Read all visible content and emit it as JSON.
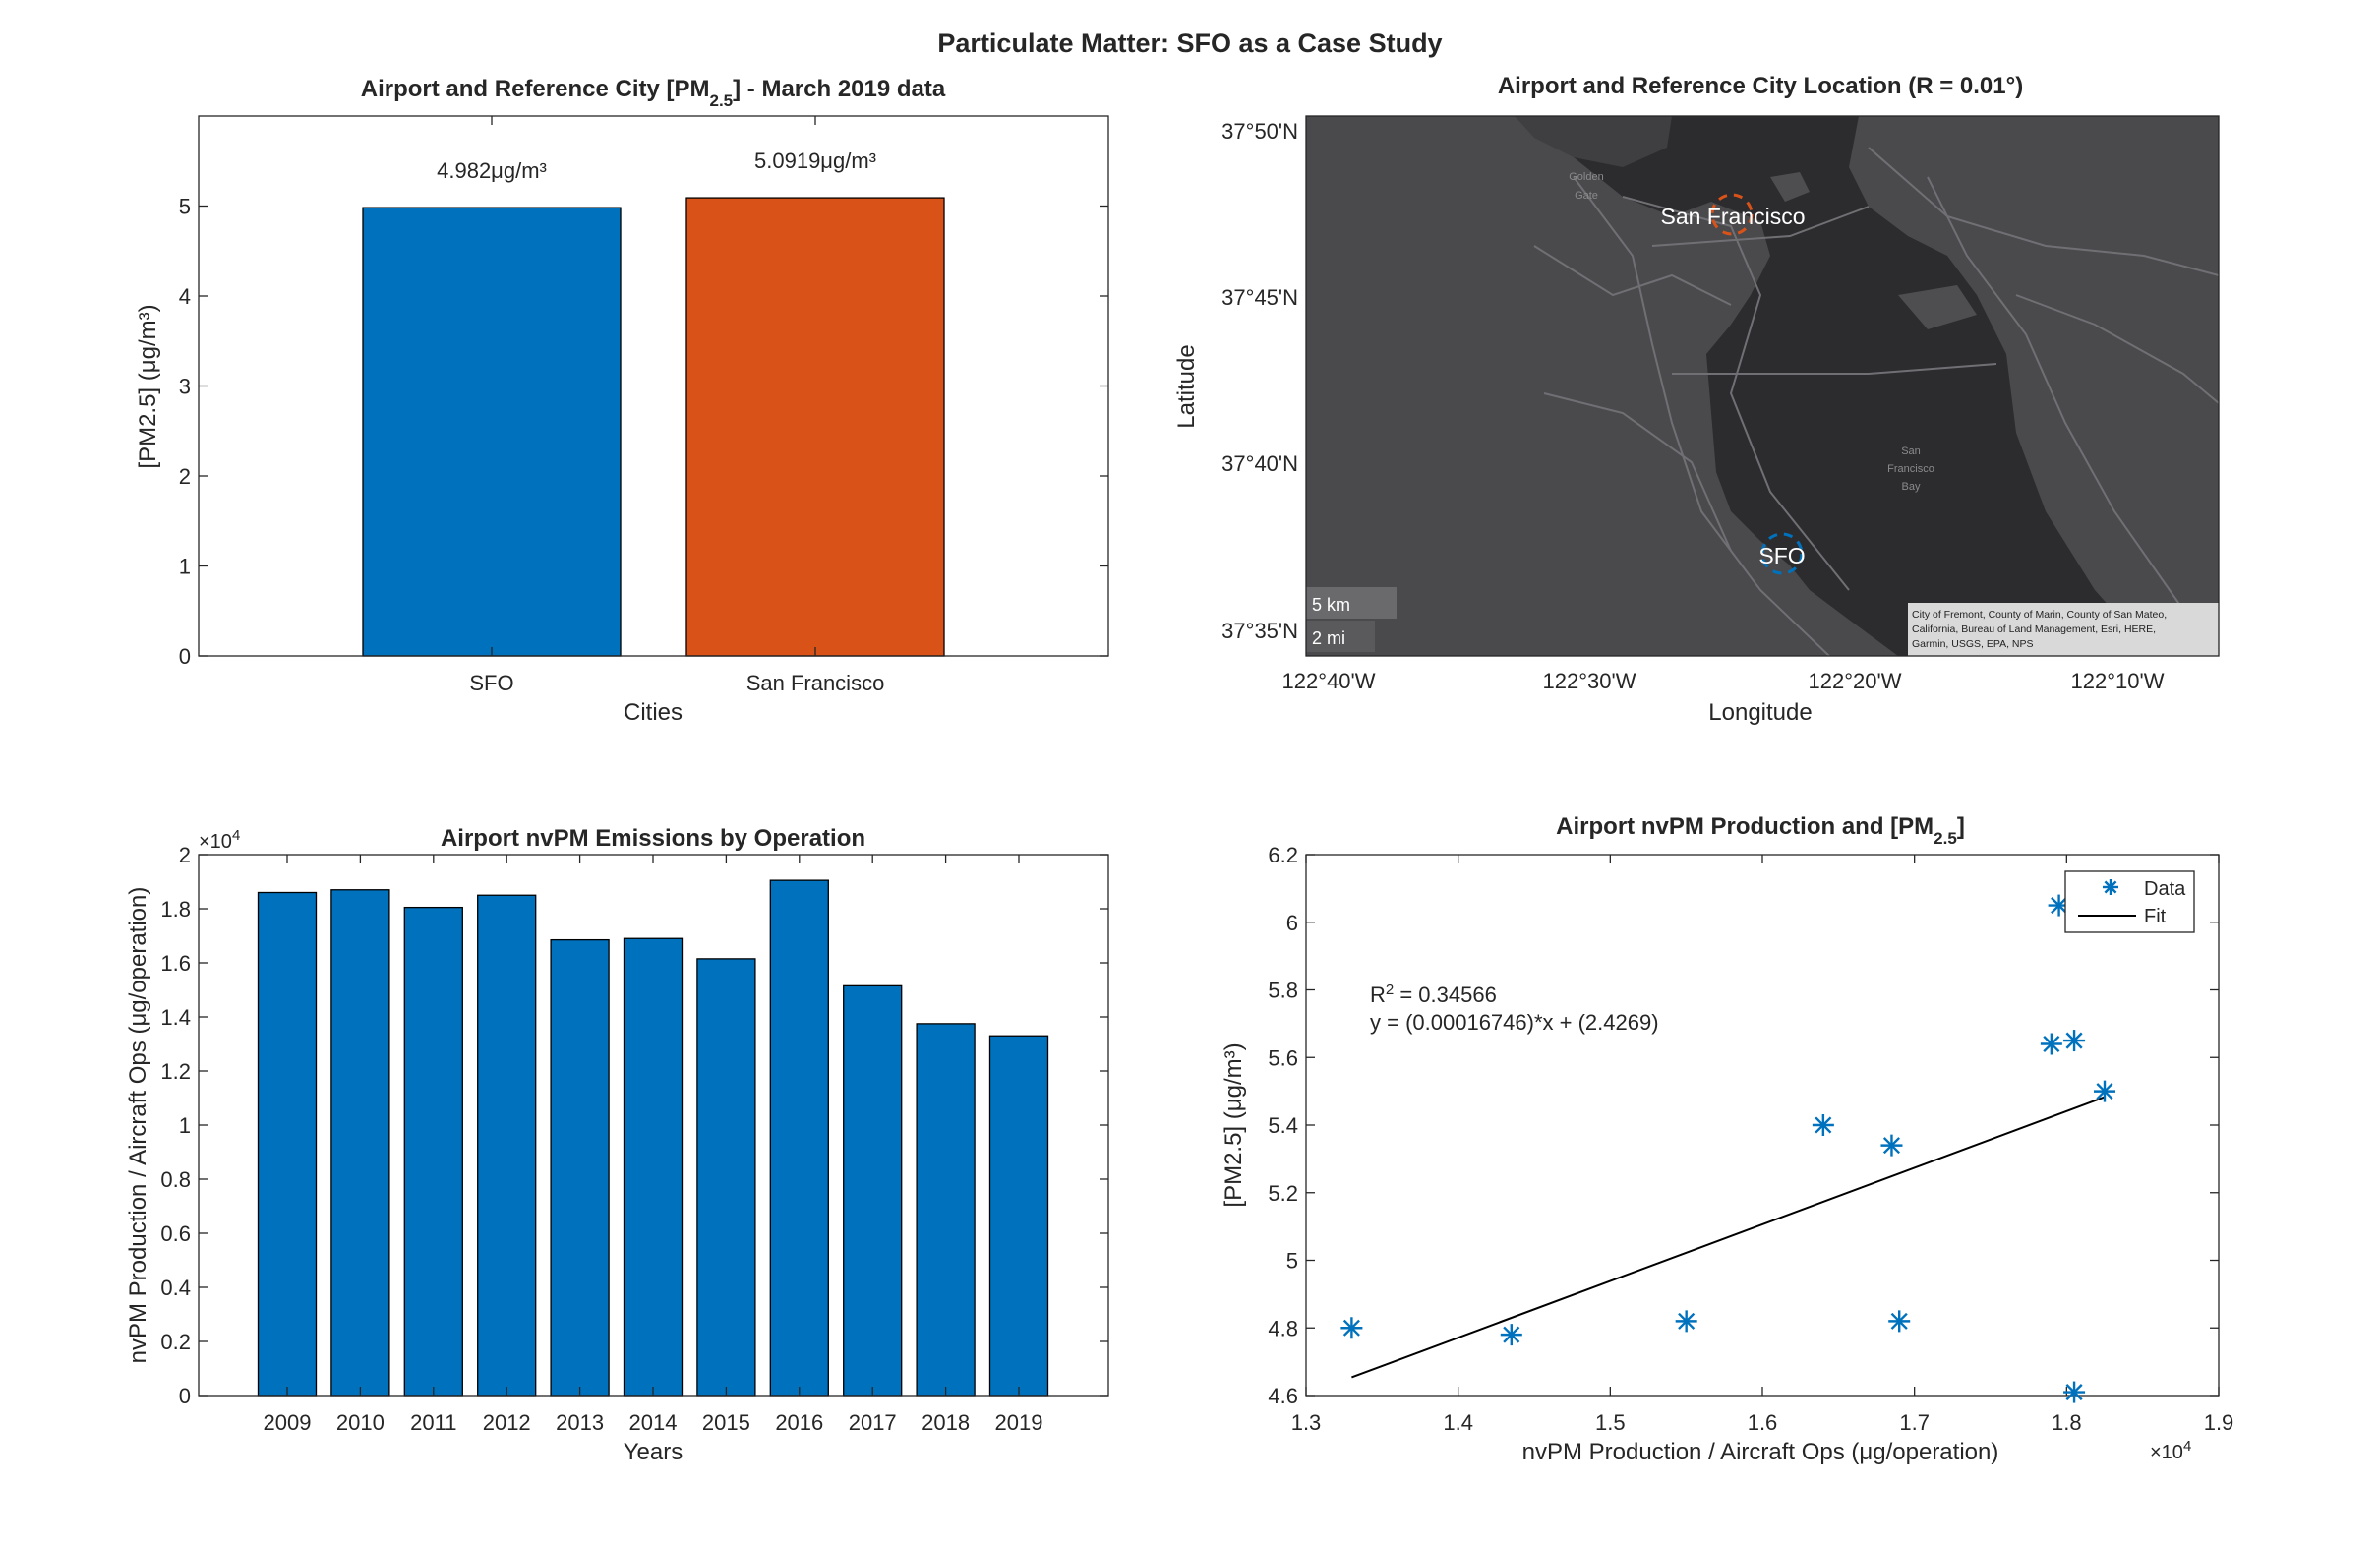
{
  "figure": {
    "title": "Particulate Matter: SFO as a Case Study"
  },
  "colors": {
    "blue": "#0072BD",
    "orange": "#D95319",
    "axes": "#262626",
    "map_bg": "#2c2c2f",
    "map_land": "#4a4a4d",
    "map_road": "#707074"
  },
  "chart_data": [
    {
      "id": "bar_city",
      "type": "bar",
      "title_main": "Airport and Reference City [PM",
      "title_sub": "2.5",
      "title_tail": "] - March 2019 data",
      "categories": [
        "SFO",
        "San Francisco"
      ],
      "values": [
        4.982,
        5.0919
      ],
      "value_labels": [
        "4.982μg/m³",
        "5.0919μg/m³"
      ],
      "bar_colors": [
        "#0072BD",
        "#D95319"
      ],
      "xlabel": "Cities",
      "ylabel": "[PM2.5] (μg/m³)",
      "ylim": [
        0,
        6
      ],
      "yticks": [
        0,
        1,
        2,
        3,
        4,
        5
      ],
      "grid": false
    },
    {
      "id": "map",
      "type": "map",
      "title": "Airport and Reference City Location (R = 0.01°)",
      "xlabel": "Longitude",
      "ylabel": "Latitude",
      "xticks": [
        "122°40'W",
        "122°30'W",
        "122°20'W",
        "122°10'W"
      ],
      "yticks": [
        "37°50'N",
        "37°45'N",
        "37°40'N",
        "37°35'N"
      ],
      "markers": [
        {
          "label": "San Francisco",
          "lat": 37.7749,
          "lon": -122.4194,
          "color": "#D95319"
        },
        {
          "label": "SFO",
          "lat": 37.6213,
          "lon": -122.379,
          "color": "#0072BD"
        }
      ],
      "place_labels": [
        "Golden Gate",
        "San Francisco Bay"
      ],
      "scalebar": [
        "5 km",
        "2 mi"
      ],
      "attribution": "City of Fremont, County of Marin, County of San Mateo, California, Bureau of Land Management, Esri, HERE, Garmin, USGS, EPA, NPS"
    },
    {
      "id": "bar_years",
      "type": "bar",
      "title": "Airport nvPM Emissions by Operation",
      "categories": [
        "2009",
        "2010",
        "2011",
        "2012",
        "2013",
        "2014",
        "2015",
        "2016",
        "2017",
        "2018",
        "2019"
      ],
      "values": [
        18600,
        18700,
        18050,
        18500,
        16850,
        16900,
        16150,
        19050,
        15150,
        13750,
        13300
      ],
      "xlabel": "Years",
      "ylabel": "nvPM Production / Aircraft Ops (μg/operation)",
      "ylim": [
        0,
        20000
      ],
      "yticks": [
        0,
        2000,
        4000,
        6000,
        8000,
        10000,
        12000,
        14000,
        16000,
        18000,
        20000
      ],
      "ytick_labels": [
        "0",
        "0.2",
        "0.4",
        "0.6",
        "0.8",
        "1",
        "1.2",
        "1.4",
        "1.6",
        "1.8",
        "2"
      ],
      "y_exponent": "×10",
      "y_exponent_power": "4",
      "grid": false
    },
    {
      "id": "scatter_fit",
      "type": "scatter",
      "title_main": "Airport nvPM Production and [PM",
      "title_sub": "2.5",
      "title_tail": "]",
      "series": [
        {
          "name": "Data",
          "x": [
            13300,
            14350,
            15500,
            16400,
            16850,
            16900,
            17900,
            17950,
            18050,
            18050,
            18250
          ],
          "y": [
            4.8,
            4.78,
            4.82,
            5.4,
            5.34,
            4.82,
            5.64,
            6.05,
            4.61,
            5.65,
            5.5
          ]
        },
        {
          "name": "Fit",
          "x": [
            13300,
            18250
          ],
          "y": [
            4.654,
            5.483
          ]
        }
      ],
      "annotation": [
        "R² = 0.34566",
        "y = (0.00016746)*x + (2.4269)"
      ],
      "xlabel": "nvPM Production / Aircraft Ops (μg/operation)",
      "ylabel": "[PM2.5] (μg/m³)",
      "xlim": [
        13000,
        19000
      ],
      "ylim": [
        4.6,
        6.2
      ],
      "xticks": [
        13000,
        14000,
        15000,
        16000,
        17000,
        18000,
        19000
      ],
      "xtick_labels": [
        "1.3",
        "1.4",
        "1.5",
        "1.6",
        "1.7",
        "1.8",
        "1.9"
      ],
      "yticks": [
        4.6,
        4.8,
        5,
        5.2,
        5.4,
        5.6,
        5.8,
        6,
        6.2
      ],
      "ytick_labels": [
        "4.6",
        "4.8",
        "5",
        "5.2",
        "5.4",
        "5.6",
        "5.8",
        "6",
        "6.2"
      ],
      "x_exponent": "×10",
      "x_exponent_power": "4",
      "legend": "top-right",
      "grid": false
    }
  ]
}
